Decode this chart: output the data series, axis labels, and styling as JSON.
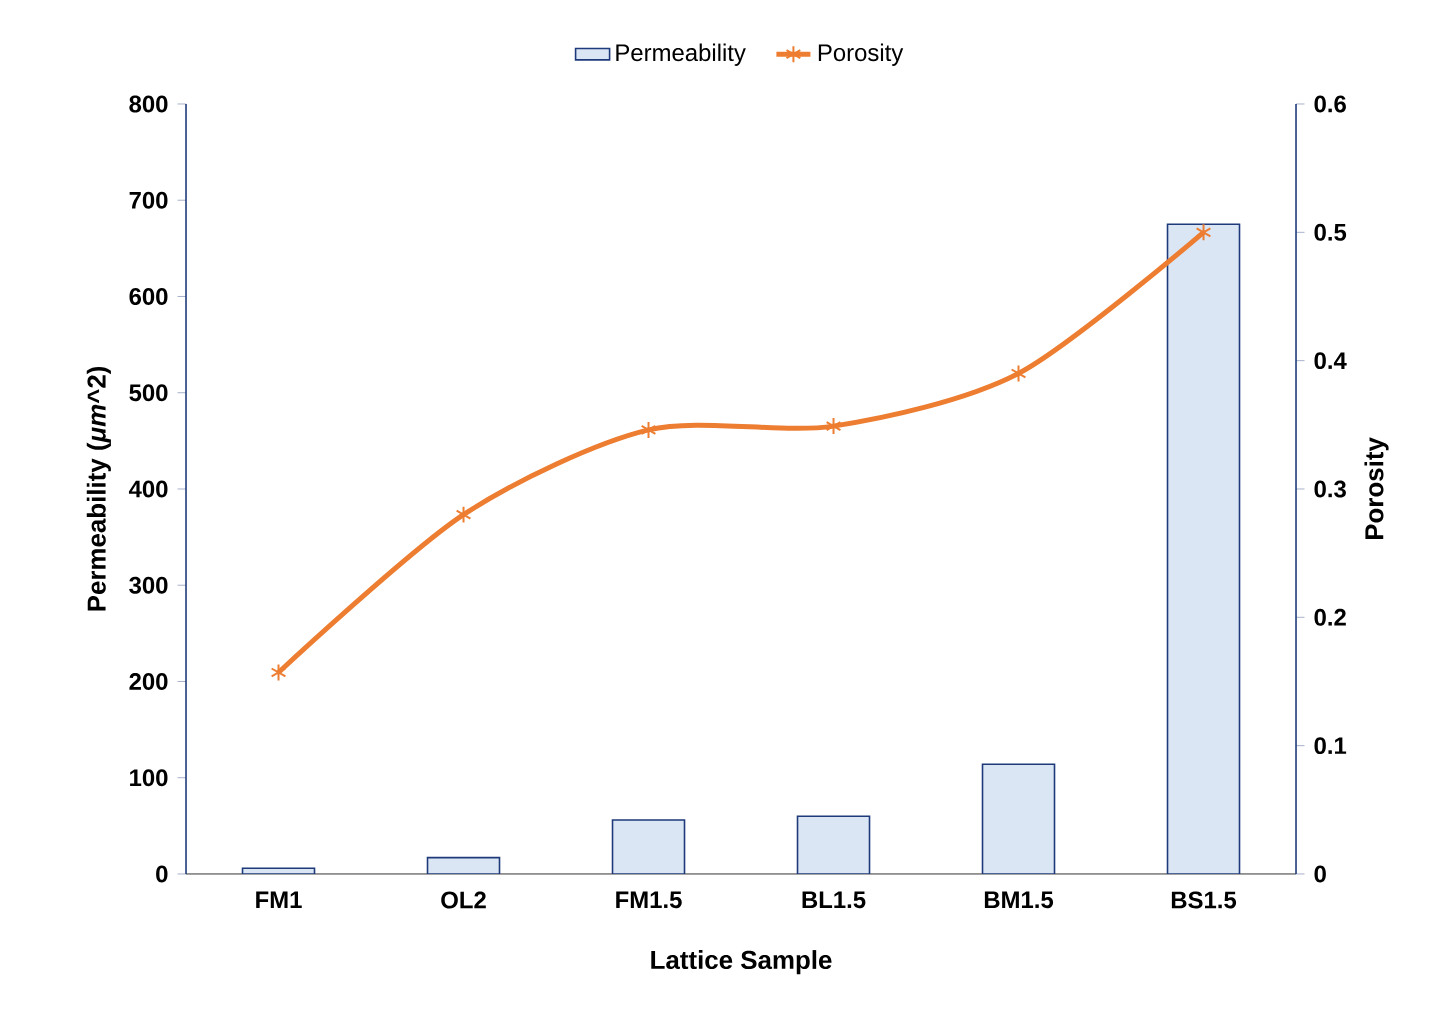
{
  "chart_data": {
    "type": "bar",
    "categories": [
      "FM1",
      "OL2",
      "FM1.5",
      "BL1.5",
      "BM1.5",
      "BS1.5"
    ],
    "xlabel": "Lattice Sample",
    "ylabel": "Permeability (*μm*^2)",
    "y2label": "Porosity",
    "ylim": [
      0,
      800
    ],
    "yticks": [
      0,
      100,
      200,
      300,
      400,
      500,
      600,
      700,
      800
    ],
    "y2lim": [
      0,
      0.6
    ],
    "y2ticks": [
      0,
      0.1,
      0.2,
      0.3,
      0.4,
      0.5,
      0.6
    ],
    "legend": "top",
    "grid": false,
    "marker": "cross",
    "series": [
      {
        "name": "Permeability",
        "color": "#dae6f4",
        "values": [
          6,
          17,
          56,
          60,
          114,
          675
        ]
      },
      {
        "name": "Porosity",
        "type": "line",
        "axis": "y2",
        "color": "#ed7d31",
        "values": [
          0.157,
          0.28,
          0.346,
          0.349,
          0.39,
          0.5
        ]
      }
    ]
  }
}
